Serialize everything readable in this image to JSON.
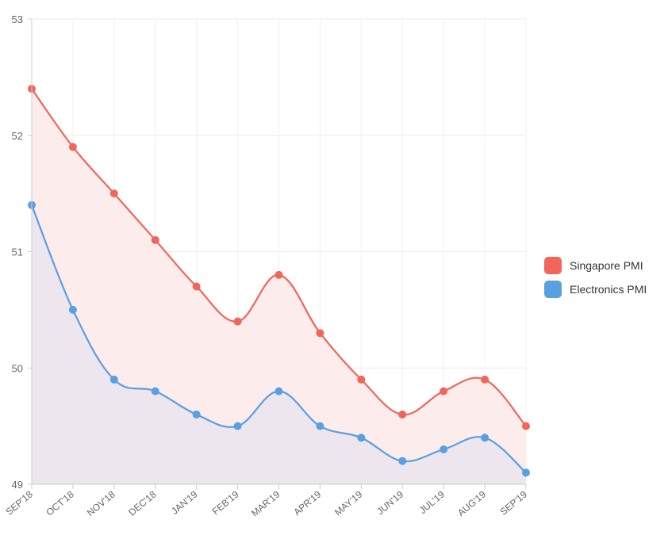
{
  "chart_data": {
    "type": "line",
    "categories": [
      "SEP'18",
      "OCT'18",
      "NOV'18",
      "DEC'18",
      "JAN'19",
      "FEB'19",
      "MAR'19",
      "APR'19",
      "MAY'19",
      "JUN'19",
      "JUL'19",
      "AUG'19",
      "SEP'19"
    ],
    "series": [
      {
        "name": "Singapore PMI",
        "color": "#f0665a",
        "fill": "#fdeaea",
        "values": [
          52.4,
          51.9,
          51.5,
          51.1,
          50.7,
          50.4,
          50.8,
          50.3,
          49.9,
          49.6,
          49.8,
          49.9,
          49.5
        ]
      },
      {
        "name": "Electronics PMI",
        "color": "#5a9fe0",
        "fill": "#ece6ef",
        "values": [
          51.4,
          50.5,
          49.9,
          49.8,
          49.6,
          49.5,
          49.8,
          49.5,
          49.4,
          49.2,
          49.3,
          49.4,
          49.1
        ]
      }
    ],
    "yticks": [
      "49",
      "50",
      "51",
      "52",
      "53"
    ],
    "ylim": [
      49,
      53
    ],
    "grid": true,
    "legend_position": "right"
  }
}
